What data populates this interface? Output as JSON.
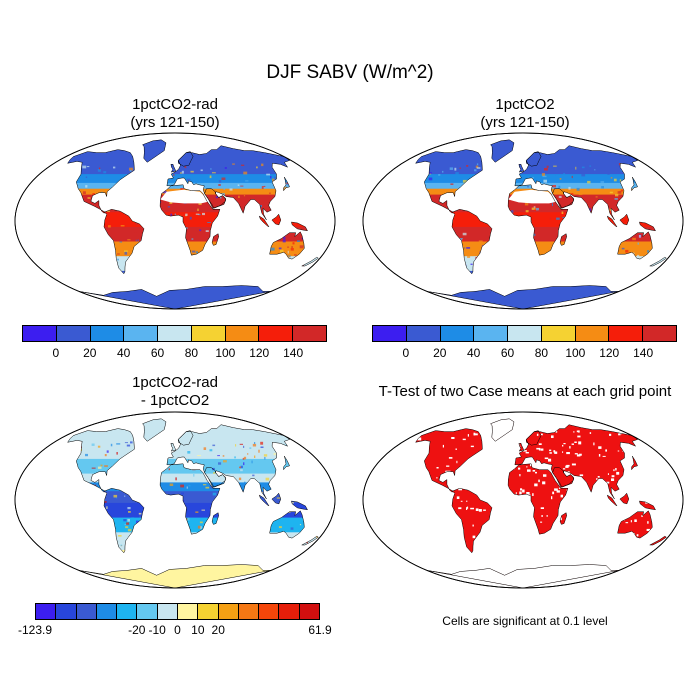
{
  "title": "DJF SABV (W/m^2)",
  "panels": [
    {
      "title_line1": "1pctCO2-rad",
      "title_line2": "(yrs 121-150)"
    },
    {
      "title_line1": "1pctCO2",
      "title_line2": "(yrs 121-150)"
    },
    {
      "title_line1": "1pctCO2-rad",
      "title_line2": "- 1pctCO2"
    },
    {
      "title_line1": "T-Test of two Case means at each grid point",
      "title_line2": ""
    }
  ],
  "colorbar_abs": {
    "colors": [
      "#3c1ef0",
      "#3a5ad2",
      "#1e8ce6",
      "#5ab4f0",
      "#c8e6f0",
      "#f5d232",
      "#f58c14",
      "#f51e0a",
      "#d22828"
    ],
    "labels": [
      "0",
      "20",
      "40",
      "60",
      "80",
      "100",
      "120",
      "140"
    ]
  },
  "colorbar_diff": {
    "colors": [
      "#3c1ef0",
      "#2846dc",
      "#3a5ad2",
      "#1e8ce6",
      "#1eb4f0",
      "#64c8f0",
      "#c8e6f0",
      "#fff5a0",
      "#f5d232",
      "#f5a014",
      "#f57814",
      "#f5460a",
      "#e61e0a",
      "#d20f0f"
    ],
    "labels": [
      "-123.9",
      "-20",
      "-10",
      "0",
      "10",
      "20",
      "61.9"
    ]
  },
  "significance_color": "#ee1111",
  "note": "Cells are significant at 0.1 level"
}
